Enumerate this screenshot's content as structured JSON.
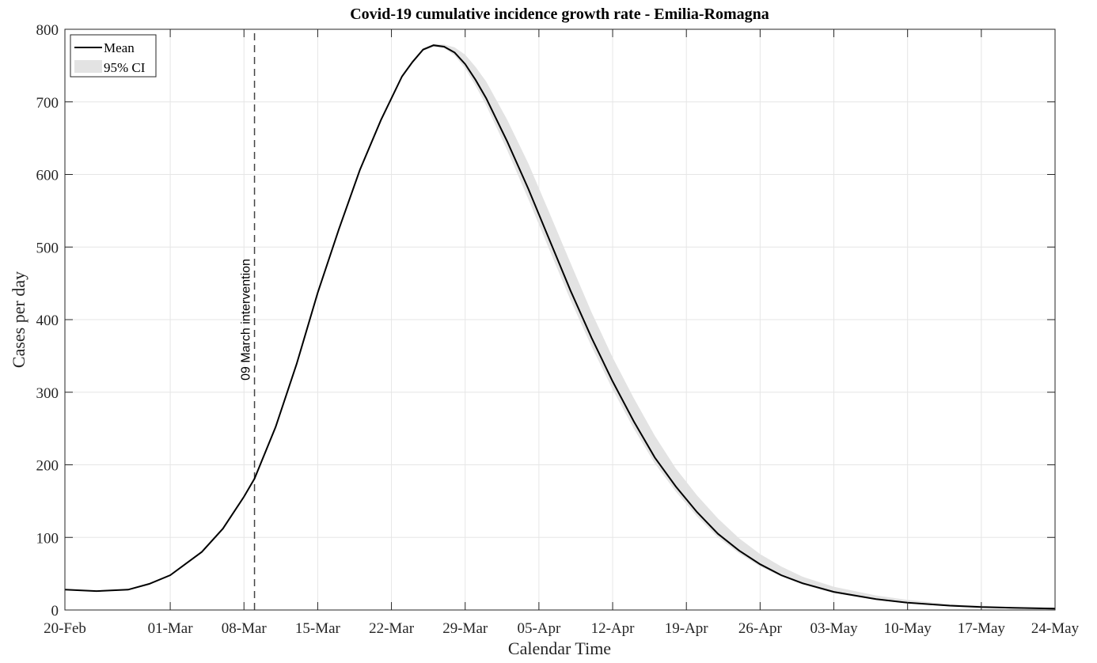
{
  "chart_data": {
    "type": "line",
    "title": "Covid-19 cumulative incidence growth rate - Emilia-Romagna",
    "xlabel": "Calendar Time",
    "ylabel": "Cases per day",
    "x_unit": "days since 20-Feb",
    "xlim": [
      0,
      94
    ],
    "ylim": [
      0,
      800
    ],
    "yticks": [
      0,
      100,
      200,
      300,
      400,
      500,
      600,
      700,
      800
    ],
    "xticks": [
      {
        "day": 0,
        "label": "20-Feb"
      },
      {
        "day": 10,
        "label": "01-Mar"
      },
      {
        "day": 17,
        "label": "08-Mar"
      },
      {
        "day": 24,
        "label": "15-Mar"
      },
      {
        "day": 31,
        "label": "22-Mar"
      },
      {
        "day": 38,
        "label": "29-Mar"
      },
      {
        "day": 45,
        "label": "05-Apr"
      },
      {
        "day": 52,
        "label": "12-Apr"
      },
      {
        "day": 59,
        "label": "19-Apr"
      },
      {
        "day": 66,
        "label": "26-Apr"
      },
      {
        "day": 73,
        "label": "03-May"
      },
      {
        "day": 80,
        "label": "10-May"
      },
      {
        "day": 87,
        "label": "17-May"
      },
      {
        "day": 94,
        "label": "24-May"
      }
    ],
    "grid": true,
    "legend": {
      "position": "top-left",
      "entries": [
        "Mean",
        "95% CI"
      ]
    },
    "annotation": {
      "day": 18,
      "label": "09 March intervention"
    },
    "x": [
      0,
      3,
      6,
      8,
      10,
      13,
      15,
      17,
      18,
      20,
      22,
      24,
      26,
      28,
      30,
      32,
      33,
      34,
      35,
      36,
      37,
      38,
      39,
      40,
      42,
      44,
      46,
      48,
      50,
      52,
      54,
      56,
      58,
      60,
      62,
      64,
      66,
      68,
      70,
      73,
      77,
      80,
      84,
      87,
      90,
      94
    ],
    "series": [
      {
        "name": "Mean",
        "color": "#000000",
        "values": [
          28,
          26,
          28,
          36,
          48,
          80,
          112,
          156,
          181,
          252,
          339,
          437,
          524,
          606,
          675,
          735,
          755,
          772,
          778,
          776,
          768,
          752,
          730,
          705,
          645,
          580,
          510,
          440,
          375,
          315,
          260,
          210,
          170,
          135,
          105,
          82,
          63,
          48,
          37,
          25,
          15,
          10,
          6,
          4,
          3,
          2
        ]
      },
      {
        "name": "95% CI upper",
        "color": "#e3e3e3",
        "values": [
          28,
          26,
          28,
          36,
          48,
          80,
          112,
          156,
          181,
          252,
          339,
          437,
          524,
          606,
          675,
          735,
          756,
          774,
          780,
          779,
          775,
          765,
          748,
          728,
          675,
          615,
          547,
          478,
          410,
          348,
          292,
          240,
          195,
          158,
          126,
          99,
          77,
          60,
          46,
          32,
          20,
          14,
          8,
          6,
          4,
          3
        ]
      },
      {
        "name": "95% CI lower",
        "color": "#e3e3e3",
        "values": [
          28,
          26,
          28,
          36,
          48,
          80,
          112,
          156,
          181,
          252,
          339,
          437,
          524,
          606,
          675,
          735,
          754,
          770,
          776,
          774,
          764,
          746,
          722,
          695,
          633,
          566,
          496,
          427,
          363,
          304,
          250,
          202,
          163,
          129,
          100,
          78,
          60,
          46,
          35,
          23,
          14,
          9,
          5,
          3,
          2,
          1
        ]
      }
    ]
  }
}
